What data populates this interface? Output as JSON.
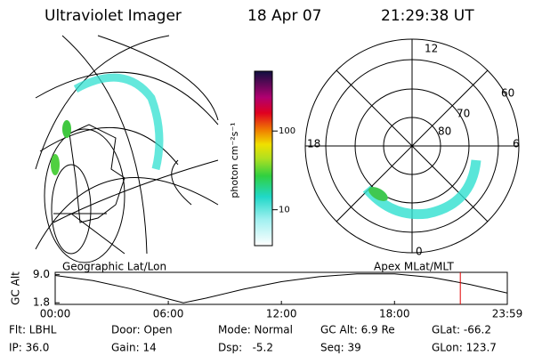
{
  "header": {
    "title": "Ultraviolet Imager",
    "date": "18 Apr 07",
    "time": "21:29:38 UT"
  },
  "colorbar": {
    "label": "photon cm⁻²s⁻¹",
    "log": true,
    "range": [
      3.5,
      575
    ],
    "ticks": [
      10,
      100
    ]
  },
  "map": {
    "label": "Geographic Lat/Lon"
  },
  "polar": {
    "label": "Apex MLat/MLT",
    "mlt_labels": [
      "12",
      "18",
      "6",
      "0"
    ],
    "lat_labels": [
      "60",
      "70",
      "80"
    ]
  },
  "altitude": {
    "ylabel": "GC Alt",
    "yticks": [
      {
        "value": 9.0,
        "label": "9.0"
      },
      {
        "value": 1.8,
        "label": "1.8"
      }
    ],
    "ylim": [
      1.4,
      9.6
    ],
    "xlim": [
      0,
      23.983
    ],
    "xticks": [
      {
        "value": 0,
        "label": "00:00"
      },
      {
        "value": 6,
        "label": "06:00"
      },
      {
        "value": 12,
        "label": "12:00"
      },
      {
        "value": 18,
        "label": "18:00"
      },
      {
        "value": 23.983,
        "label": "23:59"
      }
    ],
    "x": [
      0,
      2,
      4,
      6,
      6.8,
      8,
      10,
      12,
      14,
      16,
      18,
      20,
      22,
      23.983
    ],
    "values": [
      8.8,
      7.5,
      5.4,
      2.8,
      1.8,
      3.0,
      5.3,
      7.2,
      8.5,
      9.2,
      9.2,
      8.3,
      6.5,
      4.3
    ],
    "color": "#000000",
    "marker_time": 21.49,
    "marker_color": "#e00000"
  },
  "status": [
    [
      "Flt: LBHL",
      "Door: Open",
      "Mode: Normal",
      "GC Alt: 6.9 Re",
      "GLat: -66.2"
    ],
    [
      "IP: 36.0",
      "Gain: 14",
      "Dsp:   -5.2",
      "Seq: 39",
      "GLon: 123.7"
    ]
  ]
}
